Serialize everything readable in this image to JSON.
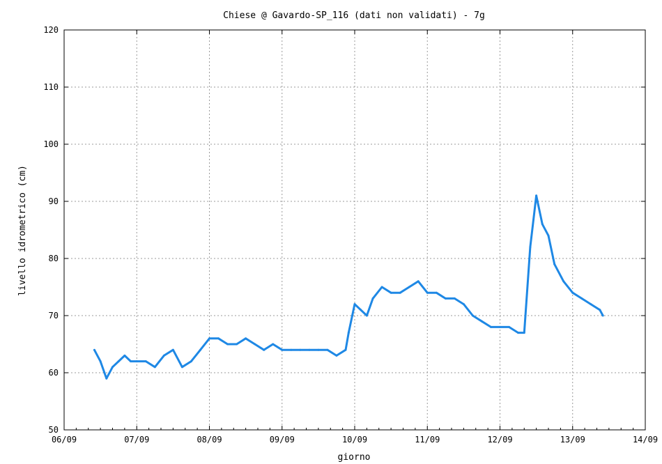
{
  "chart_data": {
    "type": "line",
    "title": "Chiese @ Gavardo-SP_116 (dati non validati) - 7g",
    "xlabel": "giorno",
    "ylabel": "livello idrometrico (cm)",
    "xlim": [
      "06/09",
      "14/09"
    ],
    "ylim": [
      50,
      120
    ],
    "x_ticks": [
      "06/09",
      "07/09",
      "08/09",
      "09/09",
      "10/09",
      "11/09",
      "12/09",
      "13/09",
      "14/09"
    ],
    "y_ticks": [
      50,
      60,
      70,
      80,
      90,
      100,
      110,
      120
    ],
    "grid": true,
    "legend": "none",
    "series_color": "#1e88e5",
    "series": [
      {
        "x": [
          "06/09 10:00",
          "06/09 12:00",
          "06/09 14:00",
          "06/09 16:00",
          "06/09 18:00",
          "06/09 20:00",
          "06/09 22:00",
          "07/09 00:00",
          "07/09 03:00",
          "07/09 06:00",
          "07/09 09:00",
          "07/09 12:00",
          "07/09 15:00",
          "07/09 18:00",
          "07/09 21:00",
          "08/09 00:00",
          "08/09 03:00",
          "08/09 06:00",
          "08/09 09:00",
          "08/09 12:00",
          "08/09 15:00",
          "08/09 18:00",
          "08/09 21:00",
          "09/09 00:00",
          "09/09 03:00",
          "09/09 06:00",
          "09/09 09:00",
          "09/09 12:00",
          "09/09 15:00",
          "09/09 18:00",
          "09/09 21:00",
          "09/09 22:00",
          "10/09 00:00",
          "10/09 02:00",
          "10/09 04:00",
          "10/09 06:00",
          "10/09 09:00",
          "10/09 12:00",
          "10/09 15:00",
          "10/09 18:00",
          "10/09 21:00",
          "11/09 00:00",
          "11/09 03:00",
          "11/09 06:00",
          "11/09 09:00",
          "11/09 12:00",
          "11/09 15:00",
          "11/09 18:00",
          "11/09 21:00",
          "12/09 00:00",
          "12/09 03:00",
          "12/09 06:00",
          "12/09 08:00",
          "12/09 10:00",
          "12/09 12:00",
          "12/09 14:00",
          "12/09 16:00",
          "12/09 18:00",
          "12/09 21:00",
          "13/09 00:00",
          "13/09 03:00",
          "13/09 06:00",
          "13/09 09:00",
          "13/09 10:00"
        ],
        "y": [
          64,
          62,
          59,
          61,
          62,
          63,
          62,
          62,
          62,
          61,
          63,
          64,
          61,
          62,
          64,
          66,
          66,
          65,
          65,
          66,
          65,
          64,
          65,
          64,
          64,
          64,
          64,
          64,
          64,
          63,
          64,
          67,
          72,
          71,
          70,
          73,
          75,
          74,
          74,
          75,
          76,
          74,
          74,
          73,
          73,
          72,
          70,
          69,
          68,
          68,
          68,
          67,
          67,
          82,
          91,
          86,
          84,
          79,
          76,
          74,
          73,
          72,
          71,
          70
        ]
      }
    ]
  }
}
